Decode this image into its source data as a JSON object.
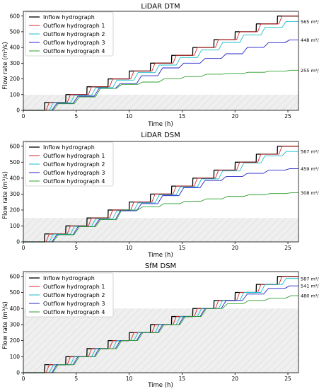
{
  "chart_data": [
    {
      "type": "line",
      "title": "LiDAR DTM",
      "xlabel": "Time (h)",
      "ylabel": "Flow rate (m³/s)",
      "xlim": [
        0,
        26
      ],
      "ylim": [
        0,
        630
      ],
      "xticks": [
        0,
        5,
        10,
        15,
        20,
        25
      ],
      "yticks": [
        0,
        100,
        200,
        300,
        400,
        500,
        600
      ],
      "hatched_band": [
        0,
        100
      ],
      "legend_position": "upper-left",
      "annotations": [
        {
          "text": "565 m³/s",
          "y": 565
        },
        {
          "text": "448 m³/s",
          "y": 448
        },
        {
          "text": "255 m³/s",
          "y": 255
        }
      ],
      "series": [
        {
          "name": "Inflow hydrograph",
          "color": "#000000",
          "width": 1.3,
          "lag": 0,
          "levels": [
            0,
            50,
            100,
            150,
            200,
            250,
            300,
            350,
            400,
            450,
            500,
            550,
            600
          ]
        },
        {
          "name": "Outflow hydrograph 1",
          "color": "#d62728",
          "width": 0.9,
          "lag": 0.15,
          "levels": [
            0,
            50,
            100,
            150,
            200,
            250,
            300,
            350,
            400,
            450,
            500,
            550,
            600
          ]
        },
        {
          "name": "Outflow hydrograph 2",
          "color": "#17becf",
          "width": 0.9,
          "lag": 0.45,
          "levels": [
            0,
            48,
            96,
            144,
            192,
            240,
            288,
            336,
            384,
            432,
            480,
            528,
            565
          ]
        },
        {
          "name": "Outflow hydrograph 3",
          "color": "#2222cc",
          "width": 0.9,
          "lag": 0.7,
          "levels": [
            0,
            44,
            90,
            140,
            170,
            220,
            270,
            300,
            330,
            360,
            400,
            430,
            448
          ]
        },
        {
          "name": "Outflow hydrograph 4",
          "color": "#2ca02c",
          "width": 0.9,
          "lag": 0.8,
          "levels": [
            0,
            42,
            85,
            140,
            165,
            180,
            200,
            215,
            230,
            235,
            242,
            250,
            255
          ]
        }
      ]
    },
    {
      "type": "line",
      "title": "LiDAR DSM",
      "xlabel": "Time (h)",
      "ylabel": "Flow rate (m³/s)",
      "xlim": [
        0,
        26
      ],
      "ylim": [
        0,
        630
      ],
      "xticks": [
        0,
        5,
        10,
        15,
        20,
        25
      ],
      "yticks": [
        0,
        100,
        200,
        300,
        400,
        500,
        600
      ],
      "hatched_band": [
        0,
        150
      ],
      "legend_position": "upper-left",
      "annotations": [
        {
          "text": "567 m³/s",
          "y": 567
        },
        {
          "text": "459 m³/s",
          "y": 459
        },
        {
          "text": "308 m³/s",
          "y": 308
        }
      ],
      "series": [
        {
          "name": "Inflow hydrograph",
          "color": "#000000",
          "width": 1.3,
          "lag": 0,
          "levels": [
            0,
            50,
            100,
            150,
            200,
            250,
            300,
            350,
            400,
            450,
            500,
            550,
            600
          ]
        },
        {
          "name": "Outflow hydrograph 1",
          "color": "#d62728",
          "width": 0.9,
          "lag": 0.15,
          "levels": [
            0,
            50,
            100,
            150,
            200,
            250,
            300,
            350,
            400,
            450,
            500,
            550,
            600
          ]
        },
        {
          "name": "Outflow hydrograph 2",
          "color": "#17becf",
          "width": 0.9,
          "lag": 0.45,
          "levels": [
            0,
            48,
            97,
            145,
            195,
            245,
            295,
            345,
            395,
            445,
            495,
            540,
            567
          ]
        },
        {
          "name": "Outflow hydrograph 3",
          "color": "#2222cc",
          "width": 0.9,
          "lag": 0.7,
          "levels": [
            0,
            45,
            95,
            140,
            195,
            240,
            290,
            340,
            385,
            410,
            430,
            450,
            459
          ]
        },
        {
          "name": "Outflow hydrograph 4",
          "color": "#2ca02c",
          "width": 0.9,
          "lag": 0.8,
          "levels": [
            0,
            45,
            95,
            140,
            200,
            220,
            240,
            255,
            270,
            285,
            295,
            303,
            308
          ]
        }
      ]
    },
    {
      "type": "line",
      "title": "SfM DSM",
      "xlabel": "Time (h)",
      "ylabel": "Flow rate (m³/s)",
      "xlim": [
        0,
        26
      ],
      "ylim": [
        0,
        630
      ],
      "xticks": [
        0,
        5,
        10,
        15,
        20,
        25
      ],
      "yticks": [
        0,
        100,
        200,
        300,
        400,
        500,
        600
      ],
      "hatched_band": [
        0,
        400
      ],
      "legend_position": "upper-left",
      "annotations": [
        {
          "text": "587 m³/s",
          "y": 587
        },
        {
          "text": "541 m³/s",
          "y": 541
        },
        {
          "text": "480 m³/s",
          "y": 480
        }
      ],
      "series": [
        {
          "name": "Inflow hydrograph",
          "color": "#000000",
          "width": 1.3,
          "lag": 0,
          "levels": [
            0,
            50,
            100,
            150,
            200,
            250,
            300,
            350,
            400,
            450,
            500,
            550,
            600
          ]
        },
        {
          "name": "Outflow hydrograph 1",
          "color": "#d62728",
          "width": 0.9,
          "lag": 0.15,
          "levels": [
            0,
            50,
            100,
            150,
            200,
            250,
            300,
            350,
            400,
            450,
            500,
            550,
            600
          ]
        },
        {
          "name": "Outflow hydrograph 2",
          "color": "#17becf",
          "width": 0.9,
          "lag": 0.45,
          "levels": [
            0,
            50,
            100,
            150,
            200,
            250,
            300,
            350,
            400,
            450,
            500,
            550,
            587
          ]
        },
        {
          "name": "Outflow hydrograph 3",
          "color": "#2222cc",
          "width": 0.9,
          "lag": 0.7,
          "levels": [
            0,
            50,
            100,
            150,
            200,
            250,
            300,
            350,
            400,
            450,
            490,
            525,
            541
          ]
        },
        {
          "name": "Outflow hydrograph 4",
          "color": "#2ca02c",
          "width": 0.9,
          "lag": 0.8,
          "levels": [
            0,
            50,
            100,
            150,
            200,
            250,
            300,
            350,
            400,
            430,
            450,
            465,
            480
          ]
        }
      ]
    }
  ]
}
